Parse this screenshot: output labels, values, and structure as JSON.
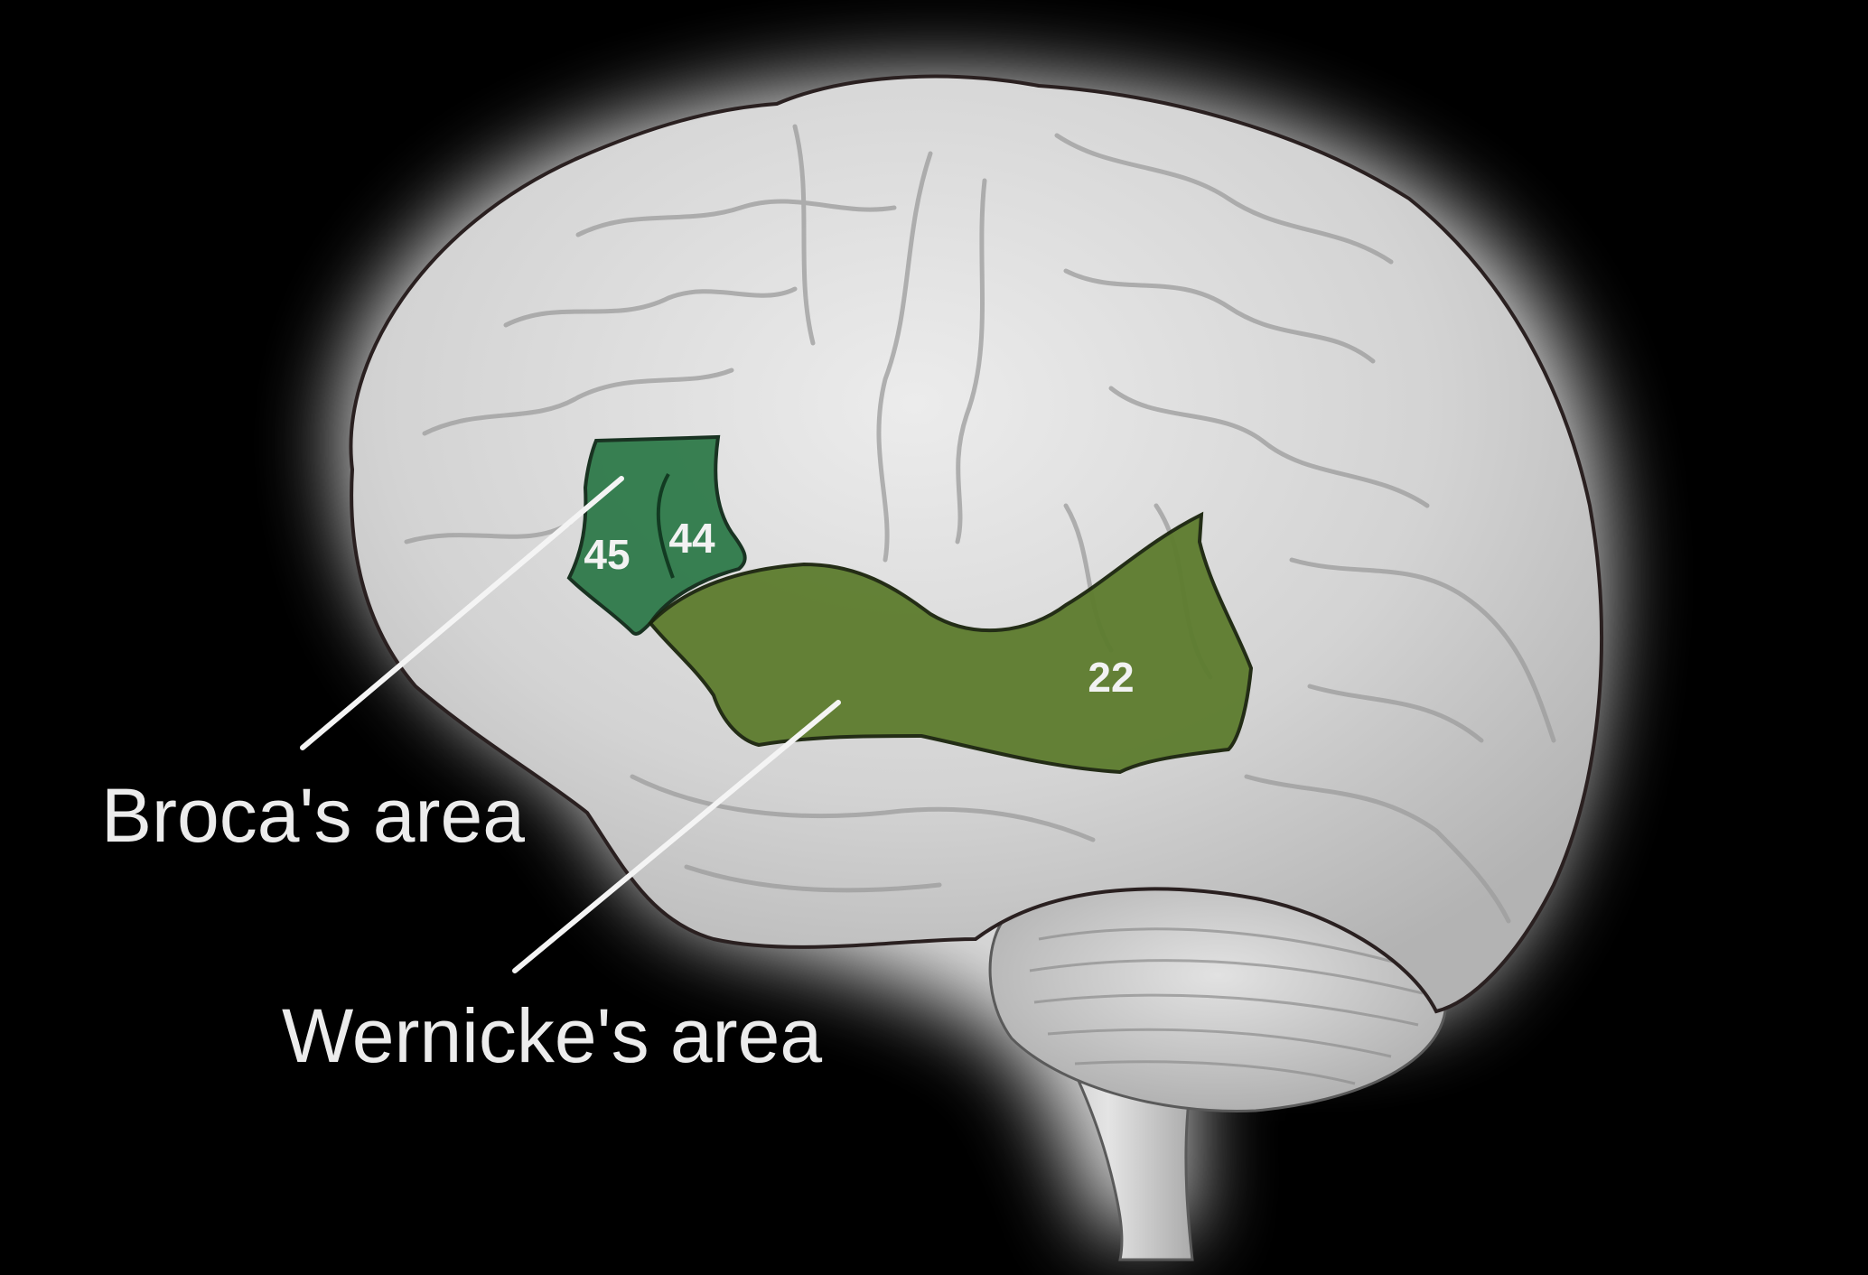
{
  "colors": {
    "background": "#000000",
    "brain": "#d6d6d6",
    "brain_outline": "#2a2020",
    "broca": "#2f7a4a",
    "wernicke": "#5d7c2e",
    "callout_line": "#f4f4f4",
    "label_text": "#ececec"
  },
  "regions": {
    "broca": {
      "areas": [
        "45",
        "44"
      ]
    },
    "wernicke": {
      "areas": [
        "22"
      ]
    }
  },
  "labels": {
    "broca": "Broca's area",
    "wernicke": "Wernicke's area"
  }
}
